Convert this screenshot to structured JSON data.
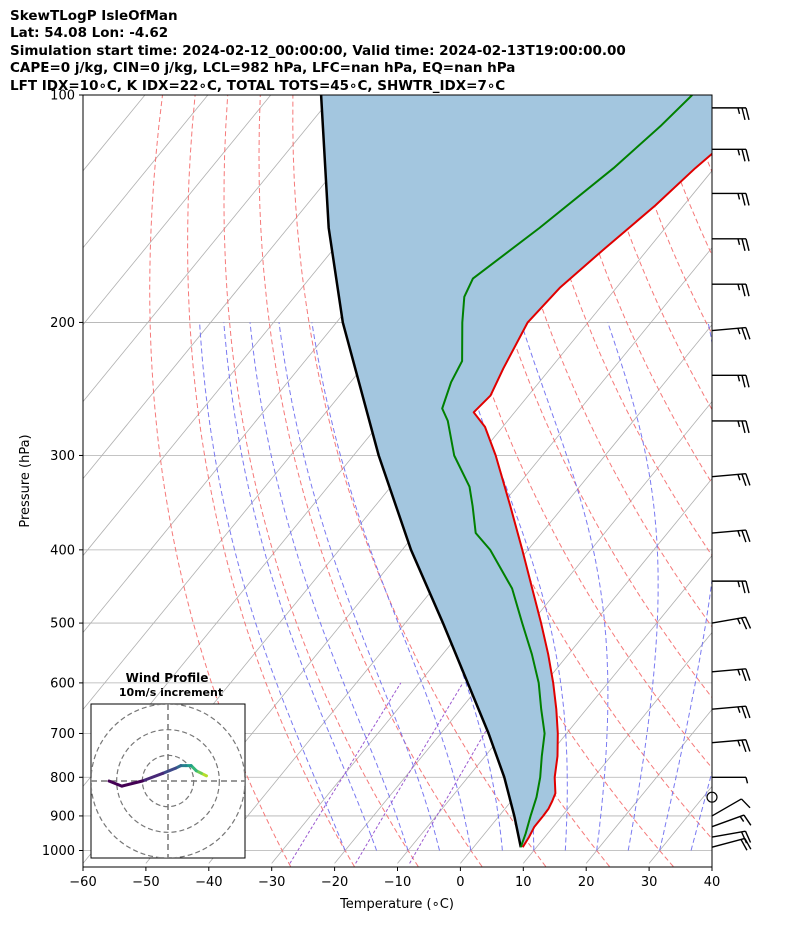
{
  "header": {
    "lines": [
      "SkewTLogP IsleOfMan",
      "Lat: 54.08   Lon: -4.62",
      "Simulation start time: 2024-02-12_00:00:00, Valid time: 2024-02-13T19:00:00.00",
      "CAPE=0 j/kg, CIN=0 j/kg, LCL=982 hPa, LFC=nan hPa, EQ=nan hPa",
      "LFT IDX=10∘C, K IDX=22∘C, TOTAL TOTS=45∘C, SHWTR_IDX=7∘C"
    ]
  },
  "chart_data": {
    "type": "skewt-logp",
    "xlabel": "Temperature (∘C)",
    "ylabel": "Pressure (hPa)",
    "xlim": [
      -60,
      40
    ],
    "ylim": [
      1040,
      100
    ],
    "x_ticks": [
      -60,
      -50,
      -40,
      -30,
      -20,
      -10,
      0,
      10,
      20,
      30,
      40
    ],
    "y_ticks": [
      1000,
      900,
      800,
      700,
      600,
      500,
      400,
      300,
      200,
      100
    ],
    "grid": true,
    "colors": {
      "temperature": "#e00000",
      "dewpoint": "#008000",
      "parcel": "#000000",
      "shade": "#a3c6df",
      "dry_adiabat": "#f46a6a",
      "moist_adiabat": "#6b6bef",
      "mixing_ratio": "#9b59d0",
      "isotherm": "#b0b0b0"
    },
    "series": [
      {
        "kind": "temperature",
        "p": [
          990,
          960,
          930,
          900,
          880,
          860,
          840,
          800,
          750,
          700,
          650,
          600,
          550,
          500,
          450,
          400,
          350,
          300,
          275,
          263,
          250,
          230,
          200,
          180,
          160,
          140,
          125,
          112,
          100
        ],
        "t": [
          7.8,
          7.5,
          7.0,
          7.0,
          6.9,
          6.5,
          6.0,
          3.8,
          1.5,
          -1.4,
          -4.8,
          -8.7,
          -13.2,
          -18.4,
          -24.3,
          -30.9,
          -38.5,
          -47.4,
          -52.8,
          -56.5,
          -56.0,
          -57.5,
          -59.6,
          -59.0,
          -57.0,
          -54.5,
          -53.0,
          -51.0,
          -52.5
        ]
      },
      {
        "kind": "dewpoint",
        "p": [
          990,
          950,
          900,
          850,
          800,
          750,
          700,
          650,
          600,
          550,
          500,
          450,
          400,
          380,
          350,
          330,
          300,
          270,
          260,
          240,
          225,
          200,
          185,
          175,
          150,
          125,
          110,
          100
        ],
        "t": [
          7.5,
          6.5,
          5.0,
          3.5,
          1.5,
          -1.0,
          -3.5,
          -7.2,
          -11.0,
          -15.8,
          -21.4,
          -27.5,
          -36.0,
          -40.5,
          -44.5,
          -47.5,
          -54.0,
          -59.5,
          -62.0,
          -64.0,
          -65.0,
          -70.0,
          -73.0,
          -74.0,
          -70.0,
          -66.0,
          -64.0,
          -63.0
        ]
      },
      {
        "kind": "parcel",
        "p": [
          990,
          900,
          800,
          700,
          600,
          500,
          400,
          300,
          200,
          150,
          100
        ],
        "t": [
          7.5,
          2.4,
          -4.2,
          -12.4,
          -22.3,
          -34.0,
          -48.6,
          -66.0,
          -89.0,
          -103.5,
          -122.0
        ]
      }
    ],
    "wind_barbs": [
      {
        "p": 990,
        "speed": 20,
        "direction": 255
      },
      {
        "p": 960,
        "speed": 20,
        "direction": 260
      },
      {
        "p": 930,
        "speed": 15,
        "direction": 250
      },
      {
        "p": 900,
        "speed": 10,
        "direction": 240
      },
      {
        "p": 850,
        "speed": 0,
        "direction": 0
      },
      {
        "p": 800,
        "speed": 5,
        "direction": 270
      },
      {
        "p": 720,
        "speed": 25,
        "direction": 265
      },
      {
        "p": 650,
        "speed": 25,
        "direction": 265
      },
      {
        "p": 580,
        "speed": 25,
        "direction": 265
      },
      {
        "p": 500,
        "speed": 25,
        "direction": 260
      },
      {
        "p": 440,
        "speed": 25,
        "direction": 270
      },
      {
        "p": 380,
        "speed": 25,
        "direction": 265
      },
      {
        "p": 320,
        "speed": 25,
        "direction": 265
      },
      {
        "p": 270,
        "speed": 25,
        "direction": 270
      },
      {
        "p": 235,
        "speed": 25,
        "direction": 270
      },
      {
        "p": 205,
        "speed": 25,
        "direction": 265
      },
      {
        "p": 178,
        "speed": 25,
        "direction": 270
      },
      {
        "p": 155,
        "speed": 25,
        "direction": 270
      },
      {
        "p": 135,
        "speed": 25,
        "direction": 270
      },
      {
        "p": 118,
        "speed": 25,
        "direction": 270
      },
      {
        "p": 104,
        "speed": 25,
        "direction": 270
      }
    ],
    "wind_profile": {
      "title": "Wind Profile",
      "subtitle": "10m/s increment",
      "points": [
        [
          15,
          2
        ],
        [
          13,
          3
        ],
        [
          11,
          4
        ],
        [
          9,
          6
        ],
        [
          7,
          6
        ],
        [
          5,
          6
        ],
        [
          3,
          5
        ],
        [
          -2,
          3
        ],
        [
          -10,
          0
        ],
        [
          -18,
          -2
        ],
        [
          -23,
          0
        ]
      ],
      "rings": [
        10,
        20,
        30
      ]
    }
  }
}
